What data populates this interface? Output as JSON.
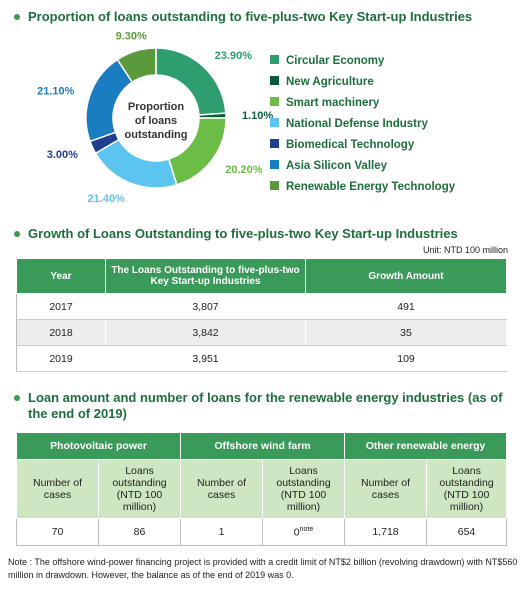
{
  "chart_data": {
    "type": "pie",
    "title": "Proportion of loans outstanding to five-plus-two Key Start-up Industries",
    "center_label": [
      "Proportion",
      "of loans",
      "outstanding"
    ],
    "categories": [
      "Circular Economy",
      "New Agriculture",
      "Smart machinery",
      "National Defense Industry",
      "Biomedical Technology",
      "Asia Silicon Valley",
      "Renewable Energy Technology"
    ],
    "values": [
      23.9,
      1.1,
      20.2,
      21.4,
      3.0,
      21.1,
      9.3
    ],
    "value_labels": [
      "23.90%",
      "1.10%",
      "20.20%",
      "21.40%",
      "3.00%",
      "21.10%",
      "9.30%"
    ],
    "colors": [
      "#2e9e6e",
      "#0b5a3a",
      "#6cbd45",
      "#5cc5ef",
      "#1f3f8f",
      "#1a7cc1",
      "#5a9a3c"
    ]
  },
  "growth_table": {
    "title": "Growth of Loans Outstanding to five-plus-two Key Start-up Industries",
    "unit": "Unit: NTD 100 million",
    "headers": [
      "Year",
      "The Loans Outstanding to five-plus-two Key Start-up Industries",
      "Growth Amount"
    ],
    "rows": [
      [
        "2017",
        "3,807",
        "491"
      ],
      [
        "2018",
        "3,842",
        "35"
      ],
      [
        "2019",
        "3,951",
        "109"
      ]
    ]
  },
  "renewable_table": {
    "title": "Loan amount and number of loans for the renewable energy industries (as of the end of 2019)",
    "groups": [
      "Photovoltaic power",
      "Offshore wind farm",
      "Other renewable energy"
    ],
    "subheaders": [
      "Number of cases",
      "Loans outstanding (NTD 100 million)",
      "Number of cases",
      "Loans outstanding (NTD 100 million)",
      "Number of cases",
      "Loans outstanding (NTD 100 million)"
    ],
    "row": [
      "70",
      "86",
      "1",
      "0",
      "1,718",
      "654"
    ],
    "note_marker": "note"
  },
  "note": "Note : The offshore wind-power financing project is provided with a credit limit of NT$2 billion (revolving drawdown) with NT$560 million in drawdown. However, the balance as of the end of 2019 was 0."
}
